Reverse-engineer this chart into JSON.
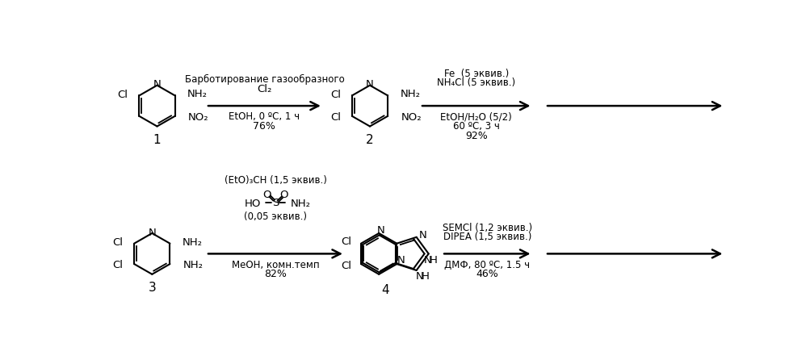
{
  "bg_color": "#ffffff",
  "figsize": [
    9.98,
    4.51
  ],
  "dpi": 100,
  "arrow1_text_top1": "Барботирование газообразного",
  "arrow1_text_top2": "Cl₂",
  "arrow1_text_bot1": "EtOH, 0 ºC, 1 ч",
  "arrow1_text_bot2": "76%",
  "arrow2_text_top1": "Fe  (5 эквив.)",
  "arrow2_text_top2": "NH₄Cl (5 эквив.)",
  "arrow2_text_bot1": "EtOH/H₂O (5/2)",
  "arrow2_text_bot2": "60 ºC, 3 ч",
  "arrow2_text_bot3": "92%",
  "arrow3_text_top1": "(EtO)₃CH (1,5 эквив.)",
  "arrow3_text_mid": "(0,05 эквив.)",
  "arrow3_text_bot1": "MeOH, комн.темп",
  "arrow3_text_bot2": "82%",
  "arrow4_text_top1": "SEMCl (1,2 эквив.)",
  "arrow4_text_top2": "DIPEA (1,5 эквив.)",
  "arrow4_text_bot1": "ДМФ, 80 ºC, 1.5 ч",
  "arrow4_text_bot2": "46%"
}
